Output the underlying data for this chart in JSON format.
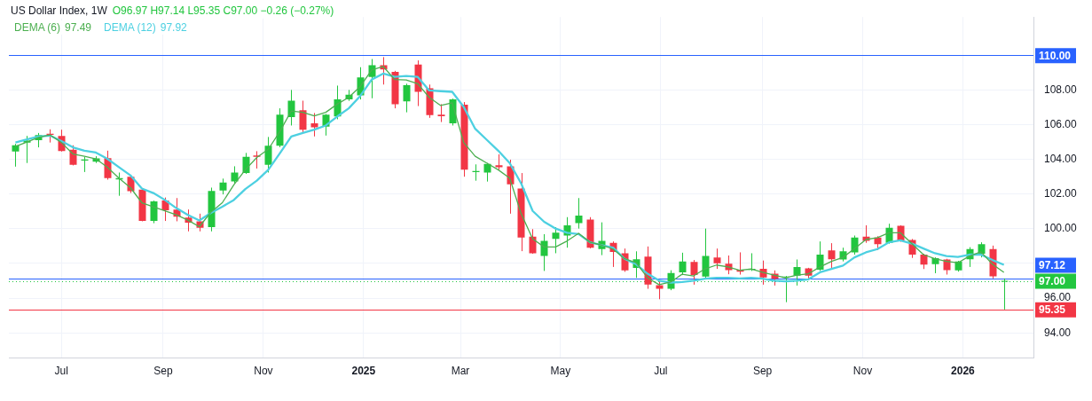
{
  "chart_data": {
    "type": "candlestick",
    "title": "US Dollar Index, 1W",
    "subtitle": "O96.97 H97.14 L95.35 C97.00 −0.26 (−0.27%)",
    "x": [
      "2024-06-03",
      "2024-06-10",
      "2024-06-17",
      "2024-06-24",
      "2024-07-01",
      "2024-07-08",
      "2024-07-15",
      "2024-07-22",
      "2024-07-29",
      "2024-08-05",
      "2024-08-12",
      "2024-08-19",
      "2024-08-26",
      "2024-09-02",
      "2024-09-09",
      "2024-09-16",
      "2024-09-23",
      "2024-09-30",
      "2024-10-07",
      "2024-10-14",
      "2024-10-21",
      "2024-10-28",
      "2024-11-04",
      "2024-11-11",
      "2024-11-18",
      "2024-11-25",
      "2024-12-02",
      "2024-12-09",
      "2024-12-16",
      "2024-12-23",
      "2024-12-30",
      "2025-01-06",
      "2025-01-13",
      "2025-01-20",
      "2025-01-27",
      "2025-02-03",
      "2025-02-10",
      "2025-02-17",
      "2025-02-24",
      "2025-03-03",
      "2025-03-10",
      "2025-03-17",
      "2025-03-24",
      "2025-03-31",
      "2025-04-07",
      "2025-04-14",
      "2025-04-21",
      "2025-04-28",
      "2025-05-05",
      "2025-05-12",
      "2025-05-19",
      "2025-05-26",
      "2025-06-02",
      "2025-06-09",
      "2025-06-16",
      "2025-06-23",
      "2025-06-30",
      "2025-07-07",
      "2025-07-14",
      "2025-07-21",
      "2025-07-28",
      "2025-08-04",
      "2025-08-11",
      "2025-08-18",
      "2025-08-25",
      "2025-09-01",
      "2025-09-08",
      "2025-09-15",
      "2025-09-22",
      "2025-09-29",
      "2025-10-06",
      "2025-10-13",
      "2025-10-20",
      "2025-10-27",
      "2025-11-03",
      "2025-11-10",
      "2025-11-17",
      "2025-11-24",
      "2025-12-01",
      "2025-12-08",
      "2025-12-15",
      "2025-12-22",
      "2025-12-29",
      "2026-01-05",
      "2026-01-12",
      "2026-01-19",
      "2026-01-26"
    ],
    "ohlc": [
      [
        104.45,
        104.89,
        103.58,
        104.81
      ],
      [
        104.97,
        105.35,
        103.79,
        105.08
      ],
      [
        105.1,
        105.52,
        104.69,
        105.4
      ],
      [
        105.48,
        105.73,
        104.97,
        105.41
      ],
      [
        105.35,
        105.71,
        104.45,
        104.48
      ],
      [
        104.55,
        104.81,
        103.65,
        103.68
      ],
      [
        103.93,
        104.14,
        103.27,
        103.99
      ],
      [
        103.87,
        104.18,
        103.79,
        104.06
      ],
      [
        104.07,
        104.5,
        102.83,
        102.92
      ],
      [
        102.84,
        103.24,
        101.9,
        102.92
      ],
      [
        103.0,
        103.05,
        102.06,
        102.17
      ],
      [
        102.25,
        102.28,
        100.43,
        100.45
      ],
      [
        100.45,
        101.62,
        100.32,
        101.58
      ],
      [
        101.63,
        101.8,
        100.45,
        101.06
      ],
      [
        101.11,
        101.77,
        100.43,
        100.69
      ],
      [
        100.64,
        101.11,
        99.85,
        100.35
      ],
      [
        100.43,
        100.87,
        99.85,
        100.06
      ],
      [
        100.09,
        102.37,
        99.85,
        102.18
      ],
      [
        102.21,
        102.89,
        101.98,
        102.66
      ],
      [
        102.73,
        103.6,
        102.61,
        103.24
      ],
      [
        103.21,
        104.37,
        103.16,
        104.14
      ],
      [
        104.22,
        104.47,
        103.47,
        104.15
      ],
      [
        103.68,
        105.29,
        103.24,
        104.78
      ],
      [
        104.78,
        106.94,
        104.7,
        106.58
      ],
      [
        106.44,
        108.0,
        105.95,
        107.38
      ],
      [
        106.83,
        107.38,
        105.56,
        105.71
      ],
      [
        106.08,
        106.67,
        105.32,
        105.84
      ],
      [
        105.89,
        106.61,
        105.37,
        106.58
      ],
      [
        106.47,
        108.25,
        106.31,
        107.46
      ],
      [
        107.45,
        108.0,
        107.37,
        107.73
      ],
      [
        107.68,
        109.31,
        107.45,
        108.72
      ],
      [
        108.75,
        109.78,
        107.52,
        109.42
      ],
      [
        109.42,
        109.89,
        108.31,
        109.18
      ],
      [
        109.04,
        109.1,
        106.94,
        107.18
      ],
      [
        107.34,
        108.36,
        106.71,
        108.28
      ],
      [
        109.46,
        109.7,
        107.07,
        107.89
      ],
      [
        108.09,
        108.31,
        106.39,
        106.55
      ],
      [
        106.58,
        107.18,
        106.15,
        106.49
      ],
      [
        106.08,
        107.5,
        105.95,
        107.45
      ],
      [
        107.15,
        107.3,
        103.0,
        103.4
      ],
      [
        103.27,
        103.71,
        102.77,
        103.33
      ],
      [
        103.24,
        103.79,
        102.72,
        103.74
      ],
      [
        103.66,
        104.29,
        103.4,
        103.55
      ],
      [
        103.6,
        103.98,
        100.87,
        102.56
      ],
      [
        102.32,
        103.21,
        98.71,
        99.49
      ],
      [
        99.54,
        99.98,
        98.56,
        98.59
      ],
      [
        98.43,
        99.69,
        97.57,
        99.3
      ],
      [
        99.42,
        100.09,
        98.59,
        99.77
      ],
      [
        99.61,
        100.67,
        98.91,
        100.2
      ],
      [
        100.32,
        101.77,
        100.01,
        100.76
      ],
      [
        100.53,
        100.67,
        98.87,
        98.91
      ],
      [
        98.83,
        100.37,
        98.48,
        99.3
      ],
      [
        99.19,
        99.27,
        97.8,
        98.67
      ],
      [
        98.59,
        98.86,
        97.52,
        97.6
      ],
      [
        97.75,
        98.7,
        97.17,
        98.24
      ],
      [
        98.4,
        98.98,
        96.54,
        96.78
      ],
      [
        96.75,
        96.98,
        95.94,
        96.54
      ],
      [
        96.54,
        97.61,
        96.46,
        97.45
      ],
      [
        97.49,
        98.62,
        97.33,
        98.12
      ],
      [
        98.09,
        98.2,
        96.78,
        97.33
      ],
      [
        97.25,
        100.01,
        97.17,
        98.43
      ],
      [
        98.35,
        98.86,
        97.69,
        98.01
      ],
      [
        97.99,
        98.46,
        97.38,
        97.61
      ],
      [
        97.64,
        98.64,
        97.36,
        97.53
      ],
      [
        97.63,
        98.59,
        97.57,
        97.69
      ],
      [
        97.69,
        98.17,
        96.78,
        97.2
      ],
      [
        97.41,
        97.6,
        96.73,
        97.12
      ],
      [
        97.17,
        97.28,
        95.77,
        97.25
      ],
      [
        97.3,
        98.23,
        96.73,
        97.8
      ],
      [
        97.72,
        97.75,
        97.09,
        97.3
      ],
      [
        97.64,
        99.27,
        97.57,
        98.51
      ],
      [
        98.75,
        99.17,
        97.72,
        98.24
      ],
      [
        98.23,
        98.91,
        98.12,
        98.7
      ],
      [
        98.64,
        99.61,
        98.51,
        99.49
      ],
      [
        99.54,
        100.2,
        99.19,
        99.3
      ],
      [
        99.5,
        99.57,
        98.78,
        99.11
      ],
      [
        99.19,
        100.29,
        99.14,
        100.06
      ],
      [
        100.17,
        100.2,
        99.25,
        99.3
      ],
      [
        99.35,
        99.41,
        98.32,
        98.51
      ],
      [
        98.51,
        98.56,
        97.68,
        97.93
      ],
      [
        97.96,
        98.35,
        97.44,
        98.31
      ],
      [
        98.23,
        98.27,
        97.36,
        97.61
      ],
      [
        97.6,
        98.15,
        97.53,
        98.12
      ],
      [
        98.24,
        98.94,
        97.8,
        98.83
      ],
      [
        98.56,
        99.22,
        98.35,
        99.11
      ],
      [
        98.83,
        99.03,
        97.14,
        97.26
      ],
      [
        96.97,
        97.14,
        95.35,
        97.0
      ]
    ],
    "colors": [
      "#22c63f",
      "#22c63f",
      "#22c63f",
      "#f23645",
      "#f23645",
      "#f23645",
      "#22c63f",
      "#22c63f",
      "#f23645",
      "#22c63f",
      "#f23645",
      "#f23645",
      "#22c63f",
      "#f23645",
      "#f23645",
      "#f23645",
      "#f23645",
      "#22c63f",
      "#22c63f",
      "#22c63f",
      "#22c63f",
      "#f23645",
      "#22c63f",
      "#22c63f",
      "#22c63f",
      "#f23645",
      "#f23645",
      "#22c63f",
      "#22c63f",
      "#22c63f",
      "#22c63f",
      "#22c63f",
      "#f23645",
      "#f23645",
      "#22c63f",
      "#f23645",
      "#f23645",
      "#f23645",
      "#22c63f",
      "#f23645",
      "#22c63f",
      "#22c63f",
      "#f23645",
      "#f23645",
      "#f23645",
      "#f23645",
      "#22c63f",
      "#22c63f",
      "#22c63f",
      "#22c63f",
      "#f23645",
      "#22c63f",
      "#f23645",
      "#f23645",
      "#22c63f",
      "#f23645",
      "#f23645",
      "#22c63f",
      "#22c63f",
      "#f23645",
      "#22c63f",
      "#f23645",
      "#f23645",
      "#f23645",
      "#22c63f",
      "#f23645",
      "#f23645",
      "#22c63f",
      "#22c63f",
      "#f23645",
      "#22c63f",
      "#f23645",
      "#22c63f",
      "#22c63f",
      "#f23645",
      "#f23645",
      "#22c63f",
      "#f23645",
      "#f23645",
      "#f23645",
      "#22c63f",
      "#f23645",
      "#22c63f",
      "#22c63f",
      "#22c63f",
      "#f23645",
      "#22c63f"
    ],
    "series": [
      {
        "name": "DEMA (6)",
        "type": "line",
        "color": "#4caf50",
        "values": [
          104.74,
          105.0,
          105.26,
          105.41,
          104.97,
          104.31,
          104.18,
          104.03,
          103.55,
          102.92,
          102.37,
          101.5,
          101.27,
          101.03,
          100.8,
          100.5,
          100.12,
          100.95,
          101.5,
          102.53,
          103.4,
          104.11,
          104.58,
          105.6,
          106.79,
          106.71,
          106.5,
          106.71,
          107.18,
          107.57,
          108.2,
          109.15,
          109.35,
          108.6,
          108.57,
          108.36,
          107.57,
          107.1,
          107.26,
          104.97,
          104.18,
          103.79,
          103.4,
          102.92,
          100.87,
          99.42,
          98.95,
          98.95,
          99.3,
          99.74,
          99.22,
          99.06,
          98.83,
          98.27,
          98.04,
          97.17,
          96.78,
          96.93,
          97.38,
          97.28,
          97.69,
          97.91,
          97.8,
          97.61,
          97.68,
          97.49,
          97.33,
          97.17,
          97.33,
          97.41,
          97.8,
          98.12,
          98.35,
          98.86,
          99.38,
          99.49,
          99.77,
          99.77,
          99.14,
          98.51,
          98.27,
          98.12,
          98.04,
          98.43,
          98.67,
          97.96,
          97.49
        ]
      },
      {
        "name": "DEMA (12)",
        "type": "line",
        "color": "#4dd0e1",
        "values": [
          104.97,
          105.15,
          105.32,
          105.37,
          105.05,
          104.69,
          104.5,
          104.39,
          104.03,
          103.55,
          103.08,
          102.32,
          102.06,
          101.66,
          101.19,
          100.8,
          100.48,
          100.91,
          101.27,
          101.66,
          102.29,
          102.77,
          103.4,
          104.34,
          105.32,
          105.52,
          105.71,
          105.95,
          106.47,
          106.94,
          107.65,
          108.6,
          108.94,
          108.75,
          108.8,
          108.75,
          107.97,
          107.93,
          107.89,
          107.02,
          105.76,
          105.13,
          104.5,
          103.79,
          102.61,
          101.03,
          100.4,
          100.01,
          99.77,
          99.69,
          99.22,
          99.06,
          98.91,
          98.27,
          97.96,
          97.41,
          97.01,
          96.9,
          96.93,
          97.01,
          97.12,
          97.17,
          97.17,
          97.14,
          97.17,
          97.12,
          97.01,
          96.97,
          97.01,
          97.09,
          97.49,
          97.69,
          97.88,
          98.35,
          98.64,
          98.83,
          99.22,
          99.33,
          99.14,
          98.86,
          98.59,
          98.43,
          98.38,
          98.51,
          98.51,
          98.2,
          97.92
        ]
      }
    ],
    "xlim": [
      "2024-05-30",
      "2026-02-13"
    ],
    "xticks": [
      {
        "value": "2024-07-01",
        "label": "Jul"
      },
      {
        "value": "2024-09-01",
        "label": "Sep"
      },
      {
        "value": "2024-11-01",
        "label": "Nov"
      },
      {
        "value": "2025-01-01",
        "label": "2025"
      },
      {
        "value": "2025-03-01",
        "label": "Mar"
      },
      {
        "value": "2025-05-01",
        "label": "May"
      },
      {
        "value": "2025-07-01",
        "label": "Jul"
      },
      {
        "value": "2025-09-01",
        "label": "Sep"
      },
      {
        "value": "2025-11-01",
        "label": "Nov"
      },
      {
        "value": "2026-01-01",
        "label": "2026"
      }
    ],
    "ylim": [
      92.55,
      112.2
    ],
    "yticks": [
      {
        "value": 94,
        "label": "94.00"
      },
      {
        "value": 96,
        "label": "96.00"
      },
      {
        "value": 98,
        "label": null
      },
      {
        "value": 100,
        "label": "100.00"
      },
      {
        "value": 102,
        "label": "102.00"
      },
      {
        "value": 104,
        "label": "104.00"
      },
      {
        "value": 106,
        "label": "106.00"
      },
      {
        "value": 108,
        "label": "108.00"
      },
      {
        "value": 110,
        "label": null
      }
    ],
    "ref_lines": [
      {
        "axis": "y",
        "value": 110,
        "label": "110.00",
        "color": "#2962ff"
      },
      {
        "axis": "y",
        "value": 97.12,
        "label": "97.12",
        "color": "#2962ff"
      },
      {
        "axis": "y",
        "value": 97.0,
        "label": "97.00",
        "color": "#22c63f",
        "line_style": "dotted"
      },
      {
        "axis": "y",
        "value": 95.35,
        "label": "95.35",
        "color": "#f23645"
      }
    ],
    "annotations": [
      "97.49",
      "97.92"
    ],
    "grid": true,
    "legend": "top left"
  }
}
